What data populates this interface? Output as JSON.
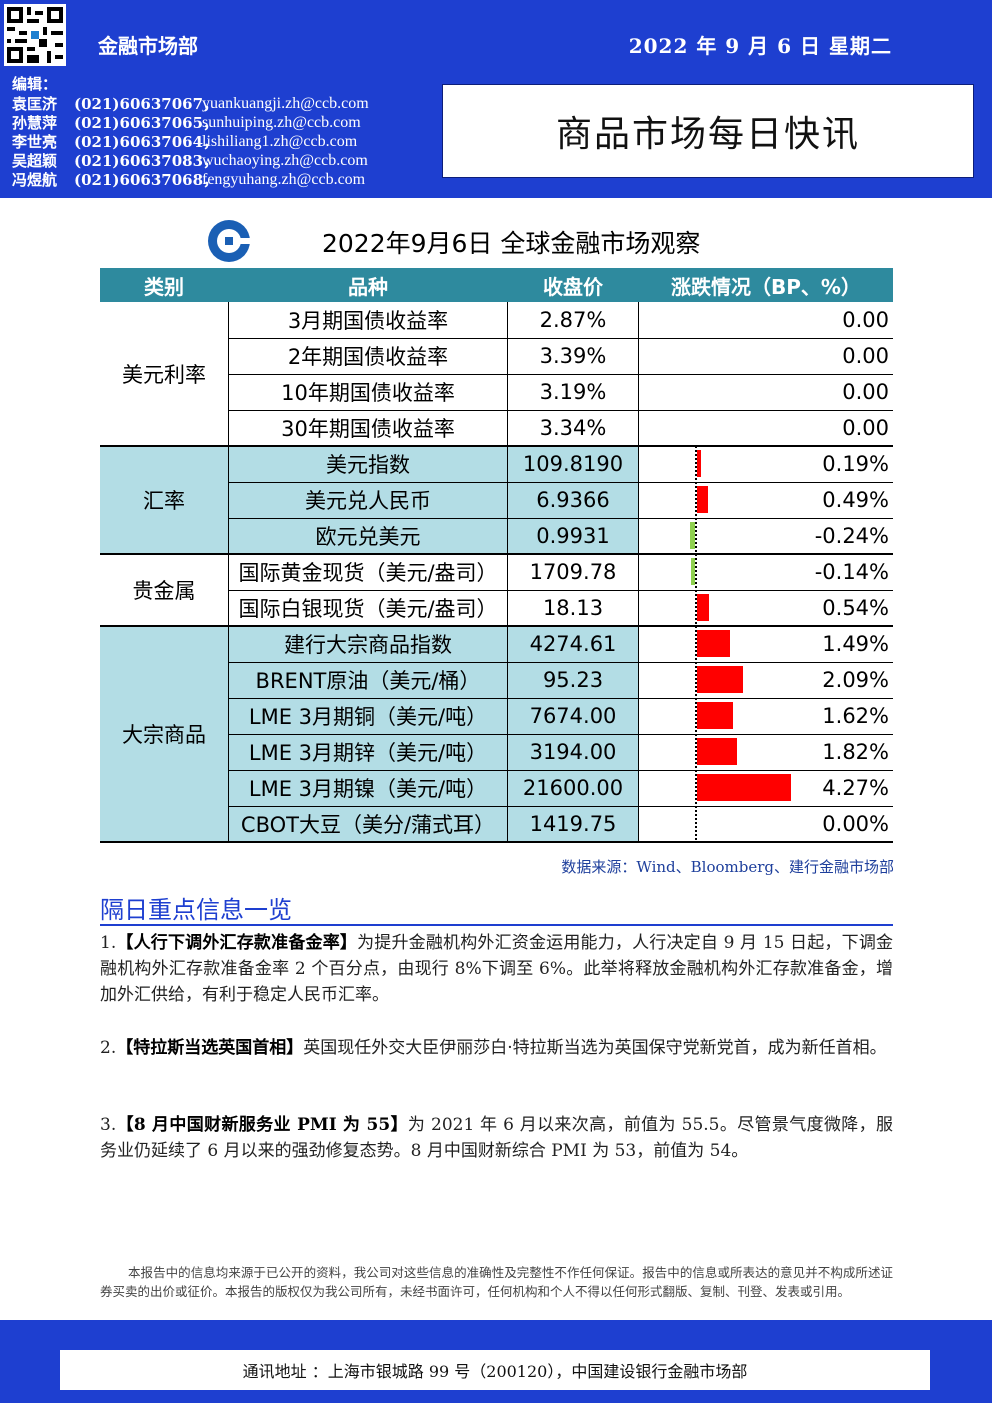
{
  "header": {
    "department": "金融市场部",
    "date": "2022 年 9 月 6 日   星期二",
    "editor_title": "编辑：",
    "editors": [
      {
        "name": "袁匡济",
        "phone": "(021)60637067，",
        "email": "yuankuangji.zh@ccb.com"
      },
      {
        "name": "孙慧萍",
        "phone": "(021)60637065，",
        "email": "sunhuiping.zh@ccb.com"
      },
      {
        "name": "李世亮",
        "phone": "(021)60637064，",
        "email": "lishiliang1.zh@ccb.com"
      },
      {
        "name": "吴超颖",
        "phone": "(021)60637083，",
        "email": "wuchaoying.zh@ccb.com"
      },
      {
        "name": "冯煜航",
        "phone": "(021)60637068，",
        "email": "fengyuhang.zh@ccb.com"
      }
    ],
    "report_title": "商品市场每日快讯"
  },
  "market": {
    "title": "2022年9月6日  全球金融市场观察",
    "columns": [
      "类别",
      "品种",
      "收盘价",
      "涨跌情况（BP、%）"
    ],
    "categories": [
      "美元利率",
      "汇率",
      "贵金属",
      "大宗商品"
    ],
    "rows": [
      {
        "item": "3月期国债收益率",
        "price": "2.87%",
        "change": "0.00"
      },
      {
        "item": "2年期国债收益率",
        "price": "3.39%",
        "change": "0.00"
      },
      {
        "item": "10年期国债收益率",
        "price": "3.19%",
        "change": "0.00"
      },
      {
        "item": "30年期国债收益率",
        "price": "3.34%",
        "change": "0.00"
      },
      {
        "item": "美元指数",
        "price": "109.8190",
        "change": "0.19%"
      },
      {
        "item": "美元兑人民币",
        "price": "6.9366",
        "change": "0.49%"
      },
      {
        "item": "欧元兑美元",
        "price": "0.9931",
        "change": "-0.24%"
      },
      {
        "item": "国际黄金现货（美元/盎司）",
        "price": "1709.78",
        "change": "-0.14%"
      },
      {
        "item": "国际白银现货（美元/盎司）",
        "price": "18.13",
        "change": "0.54%"
      },
      {
        "item": "建行大宗商品指数",
        "price": "4274.61",
        "change": "1.49%"
      },
      {
        "item": "BRENT原油（美元/桶）",
        "price": "95.23",
        "change": "2.09%"
      },
      {
        "item": "LME 3月期铜（美元/吨）",
        "price": "7674.00",
        "change": "1.62%"
      },
      {
        "item": "LME 3月期锌（美元/吨）",
        "price": "3194.00",
        "change": "1.82%"
      },
      {
        "item": "LME 3月期镍（美元/吨）",
        "price": "21600.00",
        "change": "4.27%"
      },
      {
        "item": "CBOT大豆（美分/蒲式耳）",
        "price": "1419.75",
        "change": "0.00%"
      }
    ],
    "bar_values": [
      0.19,
      0.49,
      -0.24,
      -0.14,
      0.54,
      1.49,
      2.09,
      1.62,
      1.82,
      4.27,
      0.0
    ],
    "source": "数据来源：Wind、Bloomberg、建行金融市场部"
  },
  "news": {
    "section_title": "隔日重点信息一览",
    "items": [
      {
        "num": "1.",
        "headline": "【人行下调外汇存款准备金率】",
        "body": "为提升金融机构外汇资金运用能力，人行决定自 9 月 15 日起，下调金融机构外汇存款准备金率 2 个百分点，由现行 8%下调至 6%。此举将释放金融机构外汇存款准备金，增加外汇供给，有利于稳定人民币汇率。"
      },
      {
        "num": "2.",
        "headline": "【特拉斯当选英国首相】",
        "body": "英国现任外交大臣伊丽莎白·特拉斯当选为英国保守党新党首，成为新任首相。"
      },
      {
        "num": "3.",
        "headline": "【8 月中国财新服务业 PMI 为 55】",
        "body": "为 2021 年 6 月以来次高，前值为 55.5。尽管景气度微降，服务业仍延续了 6 月以来的强劲修复态势。8 月中国财新综合 PMI 为 53，前值为 54。"
      }
    ]
  },
  "footer": {
    "disclaimer": "本报告中的信息均来源于已公开的资料，我公司对这些信息的准确性及完整性不作任何保证。报告中的信息或所表达的意见并不构成所述证券买卖的出价或征价。本报告的版权仅为我公司所有，未经书面许可，任何机构和个人不得以任何形式翻版、复制、刊登、发表或引用。",
    "address": "通讯地址 ：上海市银城路 99 号（200120），中国建设银行金融市场部"
  },
  "colors": {
    "brand_blue": "#1e3fd0",
    "header_teal": "#2e8a9e",
    "row_teal": "#b3dde5",
    "up_red": "#ff0000",
    "down_green": "#8fd14f"
  }
}
